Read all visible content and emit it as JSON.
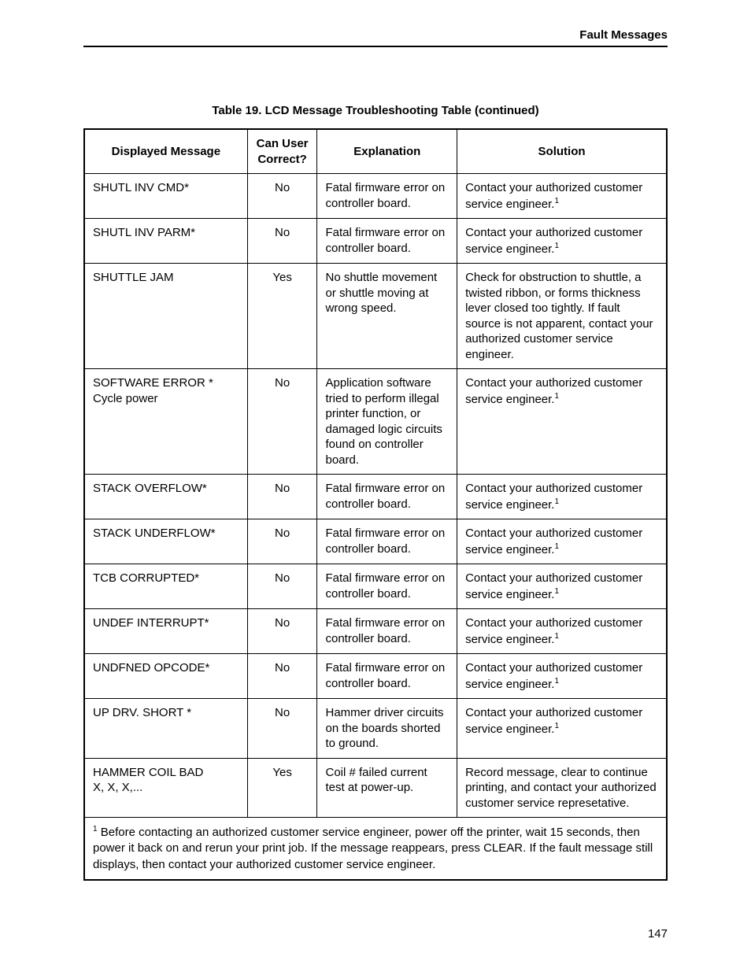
{
  "header": {
    "section_title": "Fault Messages"
  },
  "table": {
    "title": "Table 19. LCD Message Troubleshooting Table (continued)",
    "columns": {
      "message": "Displayed Message",
      "correct": "Can User Correct?",
      "explanation": "Explanation",
      "solution": "Solution"
    },
    "rows": [
      {
        "message": "SHUTL INV CMD*",
        "message2": "",
        "correct": "No",
        "explanation": "Fatal firmware error on controller board.",
        "solution": "Contact your authorized customer service engineer.",
        "solution_sup": "1"
      },
      {
        "message": "SHUTL INV PARM*",
        "message2": "",
        "correct": "No",
        "explanation": "Fatal firmware error on controller board.",
        "solution": "Contact your authorized customer service engineer.",
        "solution_sup": "1"
      },
      {
        "message": "SHUTTLE JAM",
        "message2": "",
        "correct": "Yes",
        "explanation": "No shuttle movement or shuttle moving at wrong speed.",
        "solution": "Check for obstruction to shuttle, a twisted ribbon, or forms thickness lever closed too tightly. If fault source is not apparent, contact your authorized customer service engineer.",
        "solution_sup": ""
      },
      {
        "message": "SOFTWARE ERROR *",
        "message2": "Cycle power",
        "correct": "No",
        "explanation": "Application software tried to perform illegal printer function, or damaged logic circuits found on controller board.",
        "solution": "Contact your authorized customer service engineer.",
        "solution_sup": "1"
      },
      {
        "message": "STACK OVERFLOW*",
        "message2": "",
        "correct": "No",
        "explanation": "Fatal firmware error on controller board.",
        "solution": "Contact your authorized customer service engineer.",
        "solution_sup": "1"
      },
      {
        "message": "STACK UNDERFLOW*",
        "message2": "",
        "correct": "No",
        "explanation": "Fatal firmware error on controller board.",
        "solution": "Contact your authorized customer service engineer.",
        "solution_sup": "1"
      },
      {
        "message": "TCB CORRUPTED*",
        "message2": "",
        "correct": "No",
        "explanation": "Fatal firmware error on controller board.",
        "solution": "Contact your authorized customer service engineer.",
        "solution_sup": "1"
      },
      {
        "message": "UNDEF INTERRUPT*",
        "message2": "",
        "correct": "No",
        "explanation": "Fatal firmware error on controller board.",
        "solution": "Contact your authorized customer service engineer.",
        "solution_sup": "1"
      },
      {
        "message": "UNDFNED OPCODE*",
        "message2": "",
        "correct": "No",
        "explanation": "Fatal firmware error on controller board.",
        "solution": "Contact your authorized customer service engineer.",
        "solution_sup": "1"
      },
      {
        "message": "UP DRV. SHORT *",
        "message2": "",
        "correct": "No",
        "explanation": "Hammer driver circuits on the boards shorted to ground.",
        "solution": "Contact your authorized customer service engineer.",
        "solution_sup": "1"
      },
      {
        "message": "HAMMER COIL BAD",
        "message2": "X, X, X,...",
        "correct": "Yes",
        "explanation": "Coil # failed current test at power-up.",
        "solution": "Record message, clear to continue printing, and contact your authorized customer service represetative.",
        "solution_sup": ""
      }
    ],
    "footnote_sup": "1",
    "footnote": " Before contacting an authorized customer service engineer, power off the printer, wait 15 seconds, then power it back on and rerun your print job. If the message reappears, press CLEAR. If the fault message still displays, then contact your authorized customer service engineer."
  },
  "page_number": "147"
}
